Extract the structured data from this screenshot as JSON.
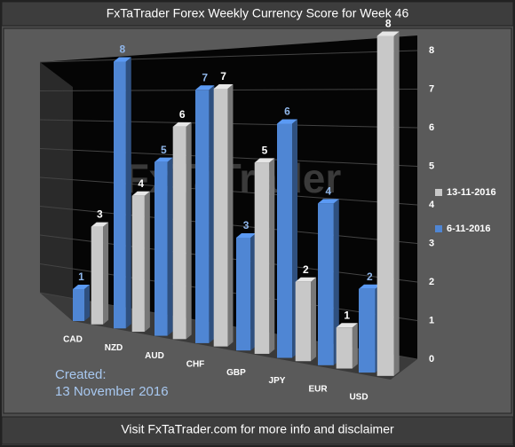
{
  "chart_data": {
    "type": "bar3d",
    "title": "FxTaTrader Forex Weekly Currency Score for Week 46",
    "watermark": "FxTaTrader",
    "created_label": "Created:",
    "created_date": "13 November 2016",
    "footer": "Visit FxTaTrader.com for more info and disclaimer",
    "categories": [
      "CAD",
      "NZD",
      "AUD",
      "CHF",
      "GBP",
      "JPY",
      "EUR",
      "USD"
    ],
    "series": [
      {
        "name": "6-11-2016",
        "color": "#4f86d4",
        "label_color": "#8fb6ea",
        "values": [
          1,
          8,
          5,
          7,
          3,
          6,
          4,
          2
        ]
      },
      {
        "name": "13-11-2016",
        "color": "#c8c8c8",
        "label_color": "#ffffff",
        "values": [
          3,
          4,
          6,
          7,
          5,
          2,
          1,
          8
        ]
      }
    ],
    "ylim": [
      0,
      8
    ],
    "yticks": [
      0,
      1,
      2,
      3,
      4,
      5,
      6,
      7,
      8
    ],
    "grid": true,
    "legend": "right"
  }
}
